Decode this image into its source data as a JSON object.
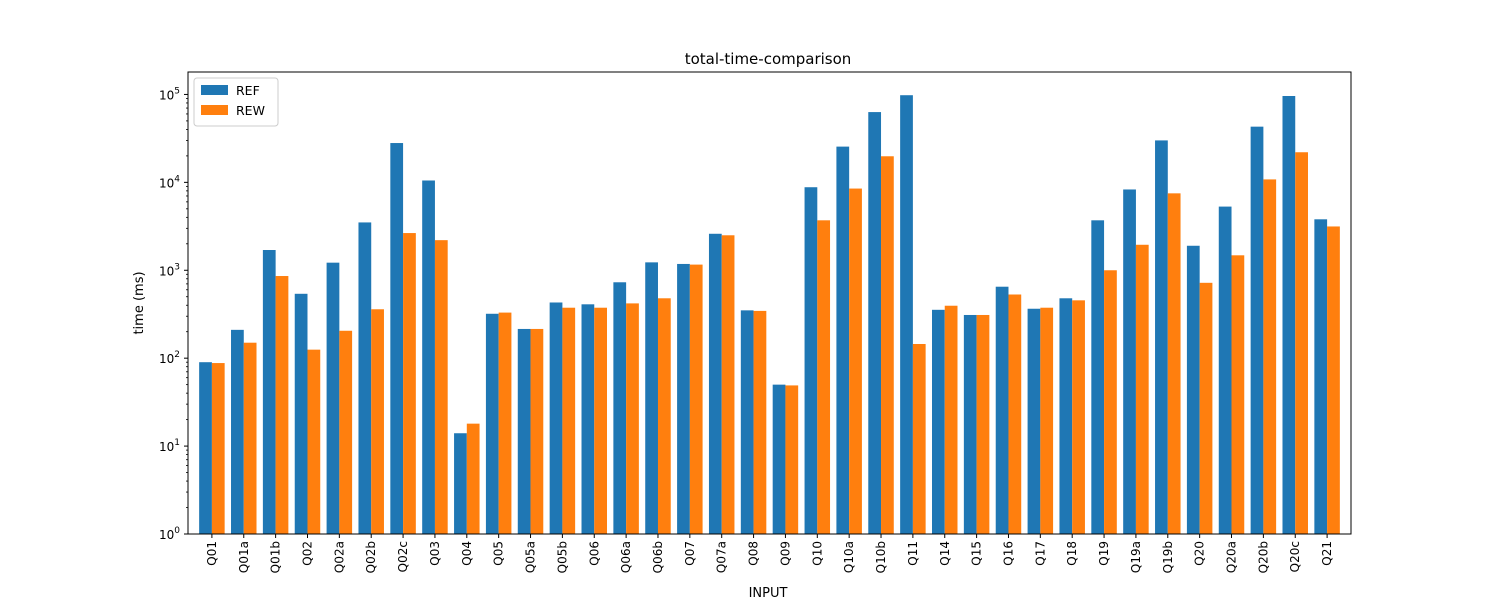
{
  "chart_data": {
    "type": "bar",
    "title": "total-time-comparison",
    "xlabel": "INPUT",
    "ylabel": "time (ms)",
    "yscale": "log",
    "ylim": [
      1,
      180000
    ],
    "y_ticks": [
      {
        "value": 1,
        "base": "10",
        "exp": "0"
      },
      {
        "value": 10,
        "base": "10",
        "exp": "1"
      },
      {
        "value": 100,
        "base": "10",
        "exp": "2"
      },
      {
        "value": 1000,
        "base": "10",
        "exp": "3"
      },
      {
        "value": 10000,
        "base": "10",
        "exp": "4"
      },
      {
        "value": 100000,
        "base": "10",
        "exp": "5"
      }
    ],
    "legend_position": "top-left",
    "categories": [
      "Q01",
      "Q01a",
      "Q01b",
      "Q02",
      "Q02a",
      "Q02b",
      "Q02c",
      "Q03",
      "Q04",
      "Q05",
      "Q05a",
      "Q05b",
      "Q06",
      "Q06a",
      "Q06b",
      "Q07",
      "Q07a",
      "Q08",
      "Q09",
      "Q10",
      "Q10a",
      "Q10b",
      "Q11",
      "Q14",
      "Q15",
      "Q16",
      "Q17",
      "Q18",
      "Q19",
      "Q19a",
      "Q19b",
      "Q20",
      "Q20a",
      "Q20b",
      "Q20c",
      "Q21"
    ],
    "series": [
      {
        "name": "REF",
        "color": "#1f77b4",
        "values": [
          90,
          210,
          1700,
          540,
          1220,
          3500,
          28000,
          10500,
          14,
          320,
          215,
          430,
          410,
          730,
          1230,
          1180,
          2600,
          350,
          50,
          8800,
          25500,
          63000,
          98000,
          355,
          310,
          650,
          365,
          480,
          3700,
          8300,
          30000,
          1900,
          5300,
          43000,
          96000,
          3800
        ]
      },
      {
        "name": "REW",
        "color": "#ff7f0e",
        "values": [
          88,
          150,
          860,
          125,
          205,
          360,
          2650,
          2200,
          18,
          330,
          215,
          375,
          375,
          420,
          480,
          1160,
          2500,
          345,
          49,
          3700,
          8500,
          19800,
          145,
          395,
          310,
          530,
          375,
          455,
          1000,
          1950,
          7500,
          720,
          1480,
          10800,
          22000,
          3150
        ]
      }
    ]
  }
}
